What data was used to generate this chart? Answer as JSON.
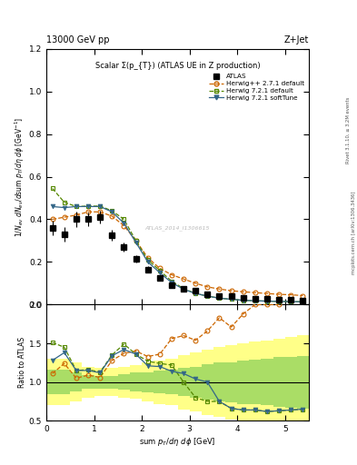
{
  "title_left": "13000 GeV pp",
  "title_right": "Z+Jet",
  "plot_title": "Scalar Σ(p_{T}) (ATLAS UE in Z production)",
  "right_label1": "Rivet 3.1.10, ≥ 3.2M events",
  "right_label2": "mcplots.cern.ch [arXiv:1306.3436]",
  "watermark": "ATLAS_2014_I1306615",
  "xlabel": "sum p_{T}/dη dϕ [GeV]",
  "ylabel": "1/N_{ev} dN_{ev}/dsum p_{T}/dη dϕ  [GeV⁻¹]",
  "ylabel_ratio": "Ratio to ATLAS",
  "xlim": [
    0,
    5.5
  ],
  "ylim_main": [
    0,
    1.2
  ],
  "ylim_ratio": [
    0.5,
    2.0
  ],
  "atlas_x": [
    0.125,
    0.375,
    0.625,
    0.875,
    1.125,
    1.375,
    1.625,
    1.875,
    2.125,
    2.375,
    2.625,
    2.875,
    3.125,
    3.375,
    3.625,
    3.875,
    4.125,
    4.375,
    4.625,
    4.875,
    5.125,
    5.375
  ],
  "atlas_y": [
    0.36,
    0.33,
    0.4,
    0.4,
    0.41,
    0.325,
    0.27,
    0.215,
    0.165,
    0.125,
    0.09,
    0.075,
    0.065,
    0.05,
    0.04,
    0.038,
    0.032,
    0.028,
    0.026,
    0.024,
    0.022,
    0.02
  ],
  "atlas_yerr": [
    0.035,
    0.035,
    0.035,
    0.03,
    0.03,
    0.025,
    0.02,
    0.018,
    0.014,
    0.011,
    0.008,
    0.007,
    0.006,
    0.004,
    0.004,
    0.003,
    0.003,
    0.003,
    0.003,
    0.002,
    0.002,
    0.002
  ],
  "herwig_pp_x": [
    0.125,
    0.375,
    0.625,
    0.875,
    1.125,
    1.375,
    1.625,
    1.875,
    2.125,
    2.375,
    2.625,
    2.875,
    3.125,
    3.375,
    3.625,
    3.875,
    4.125,
    4.375,
    4.625,
    4.875,
    5.125,
    5.375
  ],
  "herwig_pp_y": [
    0.4,
    0.41,
    0.42,
    0.435,
    0.435,
    0.415,
    0.37,
    0.3,
    0.22,
    0.17,
    0.14,
    0.12,
    0.1,
    0.083,
    0.073,
    0.065,
    0.06,
    0.056,
    0.052,
    0.048,
    0.046,
    0.042
  ],
  "herwig721_x": [
    0.125,
    0.375,
    0.625,
    0.875,
    1.125,
    1.375,
    1.625,
    1.875,
    2.125,
    2.375,
    2.625,
    2.875,
    3.125,
    3.375,
    3.625,
    3.875,
    4.125,
    4.375,
    4.625,
    4.875,
    5.125,
    5.375
  ],
  "herwig721_y": [
    0.545,
    0.48,
    0.46,
    0.462,
    0.462,
    0.44,
    0.4,
    0.3,
    0.21,
    0.16,
    0.11,
    0.075,
    0.052,
    0.04,
    0.03,
    0.025,
    0.02,
    0.018,
    0.016,
    0.015,
    0.014,
    0.013
  ],
  "herwig721st_x": [
    0.125,
    0.375,
    0.625,
    0.875,
    1.125,
    1.375,
    1.625,
    1.875,
    2.125,
    2.375,
    2.625,
    2.875,
    3.125,
    3.375,
    3.625,
    3.875,
    4.125,
    4.375,
    4.625,
    4.875,
    5.125,
    5.375
  ],
  "herwig721st_y": [
    0.46,
    0.455,
    0.46,
    0.46,
    0.46,
    0.435,
    0.382,
    0.292,
    0.2,
    0.15,
    0.103,
    0.072,
    0.052,
    0.04,
    0.03,
    0.025,
    0.02,
    0.018,
    0.016,
    0.015,
    0.014,
    0.013
  ],
  "ratio_pp_y": [
    1.11,
    1.24,
    1.05,
    1.09,
    1.06,
    1.28,
    1.37,
    1.4,
    1.33,
    1.36,
    1.56,
    1.6,
    1.54,
    1.66,
    1.83,
    1.71,
    1.88,
    2.0,
    2.0,
    2.0,
    2.09,
    2.1
  ],
  "ratio_721_y": [
    1.51,
    1.45,
    1.15,
    1.16,
    1.13,
    1.35,
    1.49,
    1.36,
    1.27,
    1.24,
    1.22,
    1.0,
    0.8,
    0.75,
    0.75,
    0.66,
    0.64,
    0.64,
    0.62,
    0.63,
    0.64,
    0.65
  ],
  "ratio_721st_y": [
    1.28,
    1.38,
    1.15,
    1.15,
    1.12,
    1.34,
    1.42,
    1.36,
    1.21,
    1.2,
    1.14,
    1.11,
    1.04,
    1.0,
    0.75,
    0.66,
    0.64,
    0.64,
    0.62,
    0.63,
    0.64,
    0.65
  ],
  "band_edges": [
    0.0,
    0.25,
    0.5,
    0.75,
    1.0,
    1.25,
    1.5,
    1.75,
    2.0,
    2.25,
    2.5,
    2.75,
    3.0,
    3.25,
    3.5,
    3.75,
    4.0,
    4.25,
    4.5,
    4.75,
    5.0,
    5.25,
    5.5
  ],
  "yellow_low": [
    0.7,
    0.7,
    0.75,
    0.8,
    0.82,
    0.82,
    0.8,
    0.78,
    0.75,
    0.72,
    0.7,
    0.65,
    0.62,
    0.58,
    0.55,
    0.52,
    0.5,
    0.48,
    0.46,
    0.44,
    0.42,
    0.4,
    0.38
  ],
  "yellow_high": [
    1.3,
    1.3,
    1.25,
    1.2,
    1.18,
    1.18,
    1.2,
    1.22,
    1.25,
    1.28,
    1.3,
    1.35,
    1.38,
    1.42,
    1.45,
    1.48,
    1.5,
    1.52,
    1.54,
    1.56,
    1.58,
    1.6,
    1.62
  ],
  "green_low": [
    0.84,
    0.84,
    0.88,
    0.91,
    0.92,
    0.92,
    0.9,
    0.88,
    0.87,
    0.85,
    0.84,
    0.82,
    0.8,
    0.77,
    0.75,
    0.74,
    0.72,
    0.71,
    0.7,
    0.68,
    0.67,
    0.66,
    0.65
  ],
  "green_high": [
    1.16,
    1.16,
    1.12,
    1.09,
    1.08,
    1.08,
    1.1,
    1.12,
    1.13,
    1.15,
    1.16,
    1.18,
    1.2,
    1.23,
    1.25,
    1.26,
    1.28,
    1.29,
    1.3,
    1.32,
    1.33,
    1.34,
    1.35
  ],
  "color_atlas": "#000000",
  "color_herwig_pp": "#cc6600",
  "color_herwig721": "#558800",
  "color_herwig721st": "#336688",
  "color_yellow": "#ffff88",
  "color_green": "#aadd66",
  "bg_color": "#ffffff"
}
